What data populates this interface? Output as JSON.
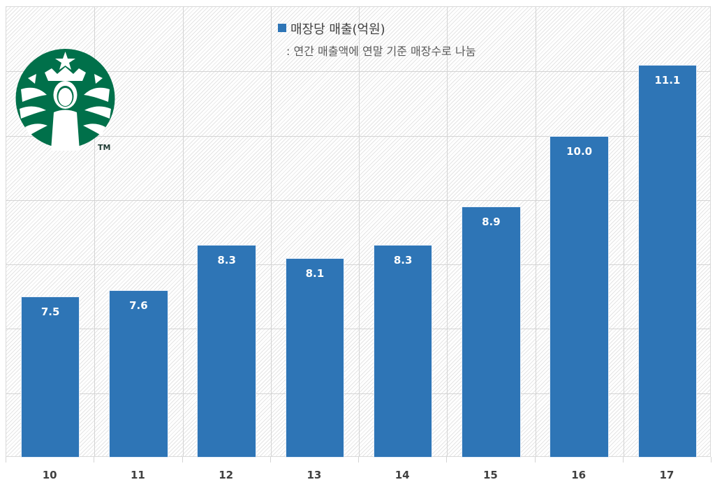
{
  "chart_data": {
    "type": "bar",
    "title": "매장당 매출(억원)",
    "subtitle": ": 연간 매출액에 연말 기준 매장수로 나눔",
    "categories": [
      "10",
      "11",
      "12",
      "13",
      "14",
      "15",
      "16",
      "17"
    ],
    "series": [
      {
        "name": "매장당 매출(억원)",
        "values": [
          7.5,
          7.6,
          8.3,
          8.1,
          8.3,
          8.9,
          10.0,
          11.1
        ],
        "color": "#2e75b6"
      }
    ],
    "data_labels": [
      "7.5",
      "7.6",
      "8.3",
      "8.1",
      "8.3",
      "8.9",
      "10.0",
      "11.1"
    ],
    "xlabel": "",
    "ylabel": "",
    "ylim": [
      5,
      12
    ],
    "grid": true,
    "legend_position": "top"
  },
  "legend": {
    "label": "매장당 매출(억원)",
    "note": ": 연간 매출액에 연말 기준 매장수로 나눔"
  },
  "logo": {
    "icon": "starbucks-siren-logo",
    "trademark": "TM",
    "color": "#00704a"
  }
}
